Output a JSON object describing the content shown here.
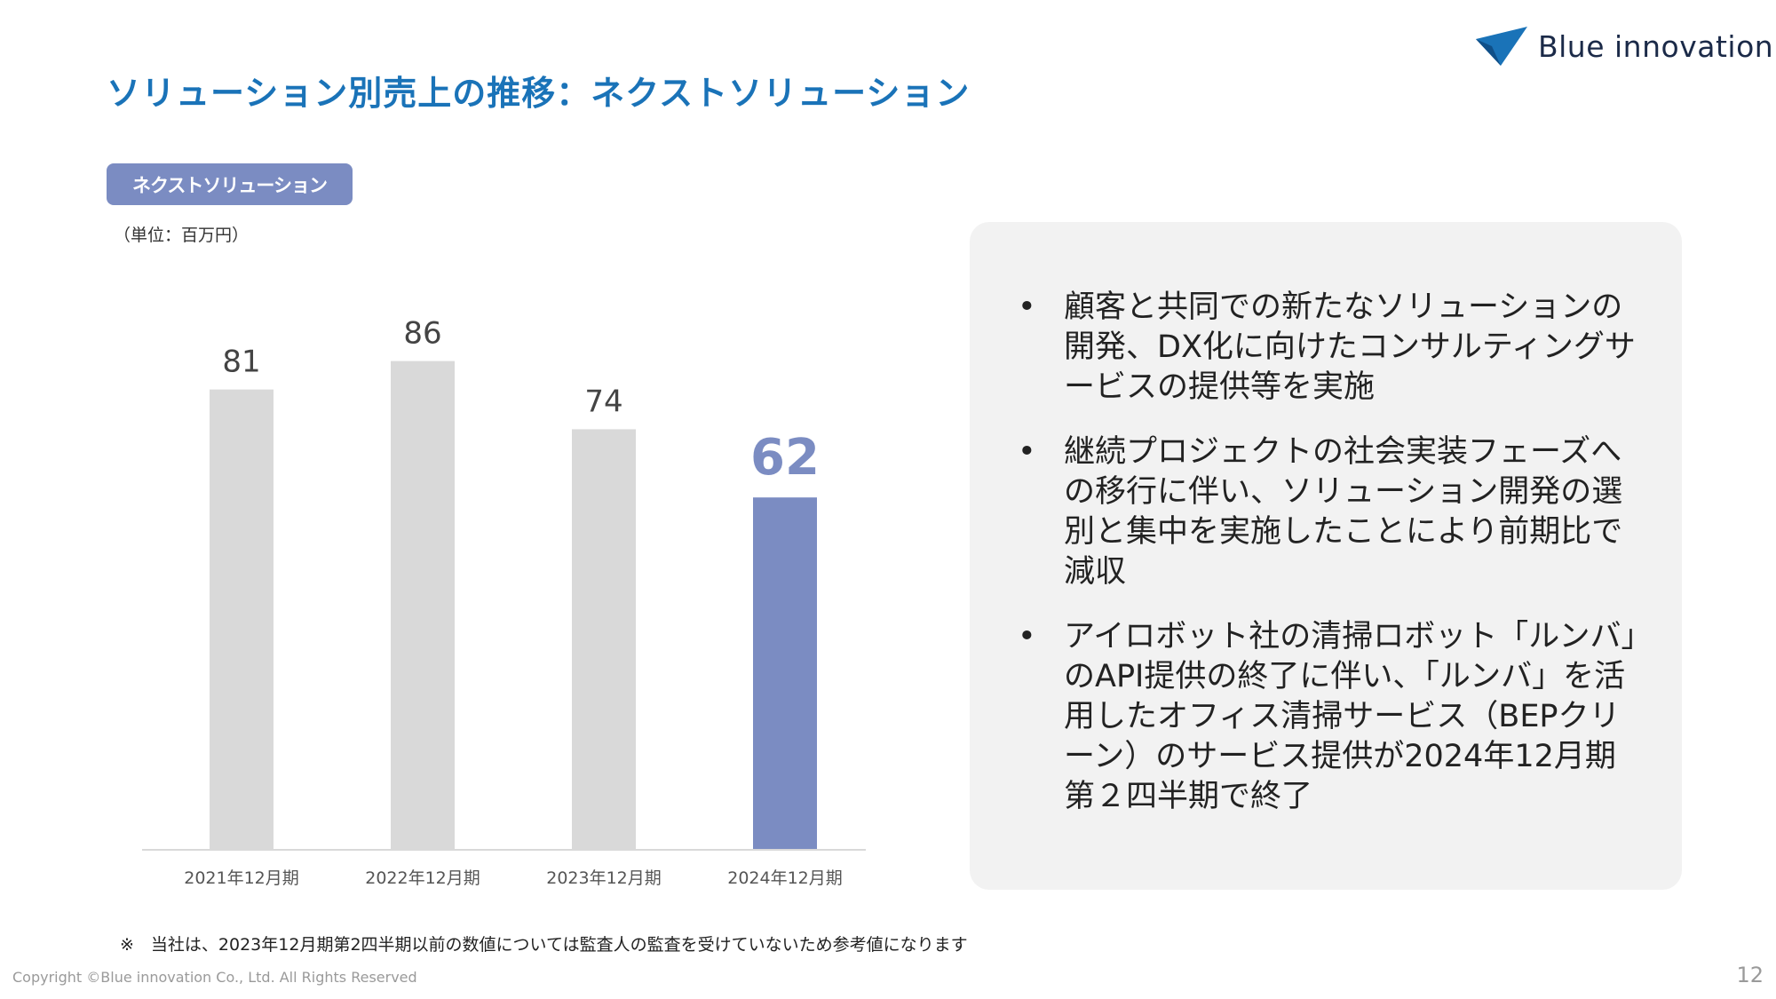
{
  "header": {
    "title": "ソリューション別売上の推移：ネクストソリューション",
    "logo_text": "Blue innovation"
  },
  "chart_label": "ネクストソリューション",
  "unit_label": "（単位：百万円）",
  "chart_data": {
    "type": "bar",
    "categories": [
      "2021年12月期",
      "2022年12月期",
      "2023年12月期",
      "2024年12月期"
    ],
    "values": [
      81,
      86,
      74,
      62
    ],
    "data_labels": [
      "81",
      "86",
      "74",
      "62"
    ],
    "highlight_index": 3,
    "colors": {
      "default": "#d9d9d9",
      "highlight": "#7b8cc2",
      "axis": "#d9d9d9",
      "label": "#444444"
    },
    "title": "",
    "xlabel": "",
    "ylabel": "",
    "ylim": [
      0,
      100
    ],
    "grid": false
  },
  "panel": {
    "bullet_symbol": "•",
    "bullets": [
      "顧客と共同での新たなソリューションの開発、DX化に向けたコンサルティングサービスの提供等を実施",
      "継続プロジェクトの社会実装フェーズへの移行に伴い、ソリューション開発の選別と集中を実施したことにより前期比で減収",
      "アイロボット社の清掃ロボット「ルンバ」のAPI提供の終了に伴い、「ルンバ」を活用したオフィス清掃サービス（BEPクリーン）のサービス提供が2024年12月期第２四半期で終了"
    ]
  },
  "footer": {
    "note": "※　当社は、2023年12月期第2四半期以前の数値については監査人の監査を受けていないため参考値になります",
    "copyright": "Copyright ©Blue innovation Co., Ltd. All Rights Reserved",
    "page_number": "12"
  },
  "colors": {
    "title": "#1a73b8",
    "accent": "#7b8cc2",
    "panel_bg": "#f2f2f2",
    "logo_mark": "#1a73b8"
  }
}
